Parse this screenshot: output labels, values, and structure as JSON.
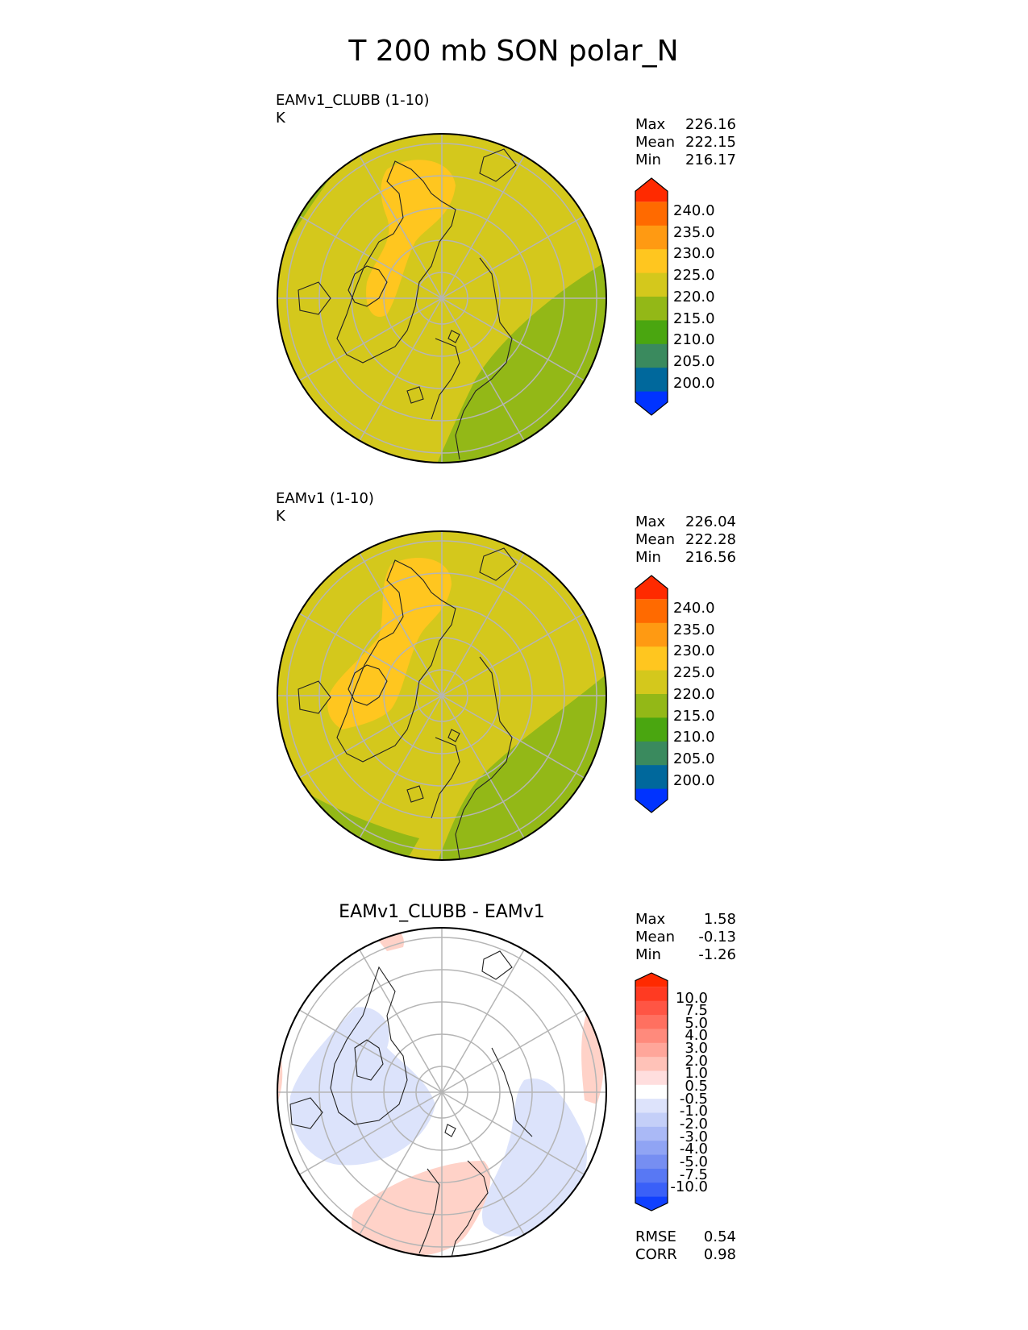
{
  "chart_data": {
    "title": "T 200 mb SON polar_N",
    "type": "heatmap",
    "projection": "north polar stereographic",
    "panels": [
      {
        "model": "EAMv1_CLUBB (1-10)",
        "units": "K",
        "stats": [
          {
            "label": "Max",
            "value": "226.16"
          },
          {
            "label": "Mean",
            "value": "222.15"
          },
          {
            "label": "Min",
            "value": "216.17"
          }
        ],
        "colorbar": {
          "levels": [
            "240.0",
            "235.0",
            "230.0",
            "225.0",
            "220.0",
            "215.0",
            "210.0",
            "205.0",
            "200.0"
          ],
          "colors": [
            "#ff2a00",
            "#ff6a00",
            "#ff9a12",
            "#ffc61f",
            "#d4c81c",
            "#93b817",
            "#4aa610",
            "#3a8a5e",
            "#00689c",
            "#0033ff"
          ]
        },
        "field_colors": {
          "base": "#d4c81c",
          "warm": "#ffc61f",
          "cool": "#93b817"
        }
      },
      {
        "model": "EAMv1 (1-10)",
        "units": "K",
        "stats": [
          {
            "label": "Max",
            "value": "226.04"
          },
          {
            "label": "Mean",
            "value": "222.28"
          },
          {
            "label": "Min",
            "value": "216.56"
          }
        ],
        "colorbar": {
          "levels": [
            "240.0",
            "235.0",
            "230.0",
            "225.0",
            "220.0",
            "215.0",
            "210.0",
            "205.0",
            "200.0"
          ],
          "colors": [
            "#ff2a00",
            "#ff6a00",
            "#ff9a12",
            "#ffc61f",
            "#d4c81c",
            "#93b817",
            "#4aa610",
            "#3a8a5e",
            "#00689c",
            "#0033ff"
          ]
        },
        "field_colors": {
          "base": "#d4c81c",
          "warm": "#ffc61f",
          "cool": "#93b817"
        }
      },
      {
        "model": "EAMv1_CLUBB - EAMv1",
        "units": "",
        "stats": [
          {
            "label": "Max",
            "value": "1.58"
          },
          {
            "label": "Mean",
            "value": "-0.13"
          },
          {
            "label": "Min",
            "value": "-1.26"
          }
        ],
        "colorbar": {
          "levels": [
            "10.0",
            "7.5",
            "5.0",
            "4.0",
            "3.0",
            "2.0",
            "1.0",
            "0.5",
            "-0.5",
            "-1.0",
            "-2.0",
            "-3.0",
            "-4.0",
            "-5.0",
            "-7.5",
            "-10.0"
          ],
          "colors": [
            "#ff2a00",
            "#ff3a22",
            "#ff5544",
            "#ff7060",
            "#ff8a7c",
            "#ffa69a",
            "#ffc2b8",
            "#ffdede",
            "#ffffff",
            "#dde3fb",
            "#c4cff8",
            "#aab9f6",
            "#90a4f4",
            "#768ef2",
            "#5878f4",
            "#3a60f8",
            "#1040ff"
          ]
        },
        "field_colors": {
          "base": "#ffffff",
          "warm": "#ffd2c8",
          "cool": "#dce3fb"
        },
        "metrics": [
          {
            "label": "RMSE",
            "value": "0.54"
          },
          {
            "label": "CORR",
            "value": "0.98"
          }
        ]
      }
    ]
  }
}
